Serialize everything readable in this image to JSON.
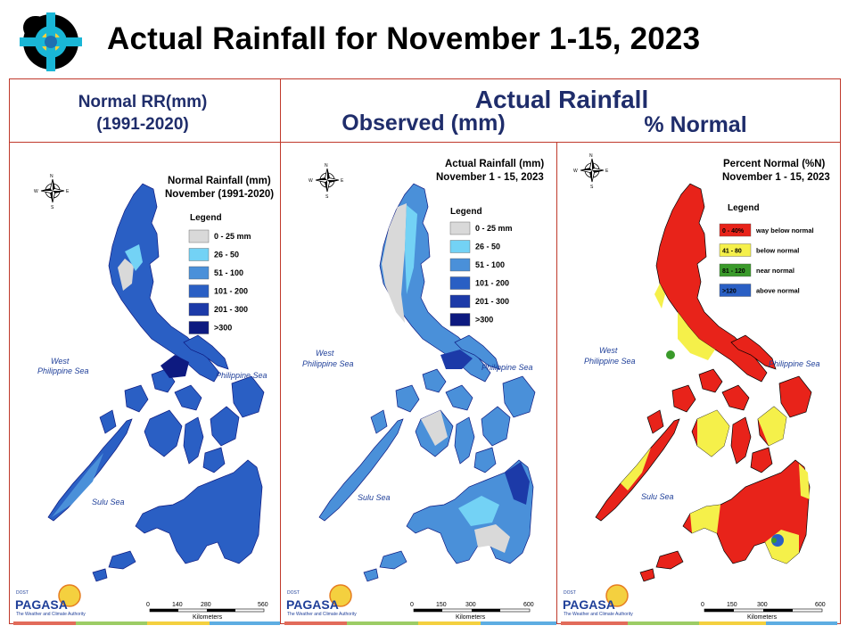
{
  "header": {
    "title": "Actual Rainfall for November 1-15, 2023"
  },
  "section_headers": {
    "normal_line1": "Normal RR(mm)",
    "normal_line2": "(1991-2020)",
    "actual": "Actual Rainfall",
    "observed": "Observed (mm)",
    "percent": "% Normal"
  },
  "panels": {
    "normal": {
      "title_line1": "Normal Rainfall (mm)",
      "title_line2": "November (1991-2020)",
      "legend_title": "Legend",
      "legend": [
        {
          "label": "0 - 25 mm",
          "color": "#d9d9d9"
        },
        {
          "label": "26 - 50",
          "color": "#73d2f5"
        },
        {
          "label": "51 - 100",
          "color": "#4a90d9"
        },
        {
          "label": "101 - 200",
          "color": "#2a5fc4"
        },
        {
          "label": "201 - 300",
          "color": "#1c3aa8"
        },
        {
          "label": ">300",
          "color": "#0d1a80"
        }
      ],
      "scale": [
        "0",
        "140",
        "280",
        "560"
      ],
      "scale_unit": "Kilometers"
    },
    "observed": {
      "title_line1": "Actual Rainfall (mm)",
      "title_line2": "November 1 - 15, 2023",
      "legend_title": "Legend",
      "legend": [
        {
          "label": "0 - 25 mm",
          "color": "#d9d9d9"
        },
        {
          "label": "26 - 50",
          "color": "#73d2f5"
        },
        {
          "label": "51 - 100",
          "color": "#4a90d9"
        },
        {
          "label": "101 - 200",
          "color": "#2a5fc4"
        },
        {
          "label": "201 - 300",
          "color": "#1c3aa8"
        },
        {
          "label": ">300",
          "color": "#0d1a80"
        }
      ],
      "scale": [
        "0",
        "150",
        "300",
        "600"
      ],
      "scale_unit": "Kilometers"
    },
    "percent": {
      "title_line1": "Percent Normal (%N)",
      "title_line2": "November 1 - 15, 2023",
      "legend_title": "Legend",
      "legend": [
        {
          "box": "0 - 40%",
          "label": "way below normal",
          "color": "#e8231a"
        },
        {
          "box": "41 - 80",
          "label": "below normal",
          "color": "#f5f04a"
        },
        {
          "box": "81 - 120",
          "label": "near normal",
          "color": "#3a9a2a"
        },
        {
          "box": ">120",
          "label": "above normal",
          "color": "#2a5fc4"
        }
      ],
      "scale": [
        "0",
        "150",
        "300",
        "600"
      ],
      "scale_unit": "Kilometers"
    }
  },
  "map_labels": {
    "west_line1": "West",
    "west_line2": "Philippine Sea",
    "east": "Philippine Sea",
    "sulu": "Sulu Sea",
    "compass": [
      "N",
      "S",
      "E",
      "W"
    ]
  },
  "branding": {
    "dost": "DOST",
    "pagasa": "PAGASA",
    "tagline": "The Weather and Climate Authority"
  },
  "colors": {
    "frame": "#c0392b",
    "header_text": "#1f2d6b"
  }
}
